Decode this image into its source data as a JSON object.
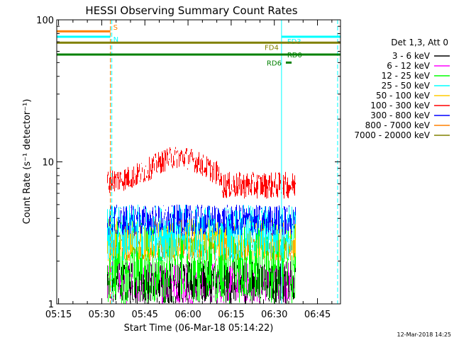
{
  "chart_data": {
    "type": "line",
    "title": "HESSI Observing Summary Count Rates",
    "xlabel": "Start Time (06-Mar-18 05:14:22)",
    "ylabel": "Count Rate (s⁻¹ detector⁻¹)",
    "y_scale": "log",
    "ylim": [
      1,
      100
    ],
    "xlim": [
      "05:14:22",
      "06:53:00"
    ],
    "x_ticks": [
      "05:15",
      "05:30",
      "05:45",
      "06:00",
      "06:15",
      "06:30",
      "06:45"
    ],
    "y_ticks": [
      "1",
      "10",
      "100"
    ],
    "data_start": "05:32:00",
    "data_end": "06:37:30",
    "legend_title": "Det 1,3, Att 0",
    "legend_position": "right",
    "series": [
      {
        "name": "3 - 6 keV",
        "color": "#000000",
        "level": [
          1,
          2
        ]
      },
      {
        "name": "6 - 12 keV",
        "color": "#ff00ff",
        "level": [
          1,
          2
        ]
      },
      {
        "name": "12 - 25 keV",
        "color": "#00ff00",
        "level": [
          1,
          4
        ]
      },
      {
        "name": "25 - 50 keV",
        "color": "#00ffff",
        "level": [
          2,
          5
        ]
      },
      {
        "name": "50 - 100 keV",
        "color": "#ffcc00",
        "level": [
          2,
          4
        ]
      },
      {
        "name": "100 - 300 keV",
        "color": "#ff0000",
        "level": [
          6,
          12
        ]
      },
      {
        "name": "300 - 800 keV",
        "color": "#0000ff",
        "level": [
          3,
          5
        ]
      },
      {
        "name": "800 - 7000 keV",
        "color": "#ff8000",
        "level": [
          2,
          3
        ]
      },
      {
        "name": "7000 - 20000 keV",
        "color": "#808000",
        "level": [
          2,
          3
        ]
      }
    ],
    "flag_bars": [
      {
        "label": "S",
        "color": "#ff8000",
        "start": "05:14:22",
        "end": "05:33:00",
        "y": 83
      },
      {
        "label": "N",
        "color": "#00ffff",
        "start": "05:14:22",
        "end": "05:33:00",
        "y": 76
      },
      {
        "label": "FD3",
        "color": "#00ffff",
        "start": "06:32:30",
        "end": "06:53:00",
        "y": 76
      },
      {
        "label": "FD4",
        "color": "#808000",
        "start": "05:14:22",
        "end": "06:53:00",
        "y": 69
      },
      {
        "label": "RD0",
        "color": "#008000",
        "start": "05:14:22",
        "end": "06:53:00",
        "y": 57
      },
      {
        "label": "RD6",
        "color": "#008000",
        "start": "06:34:00",
        "end": "06:36:00",
        "y": 50
      }
    ],
    "vlines": [
      {
        "time": "05:14:22",
        "color": "#00ffff",
        "style": "solid"
      },
      {
        "time": "05:33:00",
        "color": "#ff8000",
        "style": "dashed"
      },
      {
        "time": "05:33:30",
        "color": "#00ffff",
        "style": "dashed"
      },
      {
        "time": "06:32:30",
        "color": "#00ffff",
        "style": "solid"
      },
      {
        "time": "06:52:00",
        "color": "#00ffff",
        "style": "dashed"
      }
    ],
    "timestamp": "12-Mar-2018 14:25"
  }
}
